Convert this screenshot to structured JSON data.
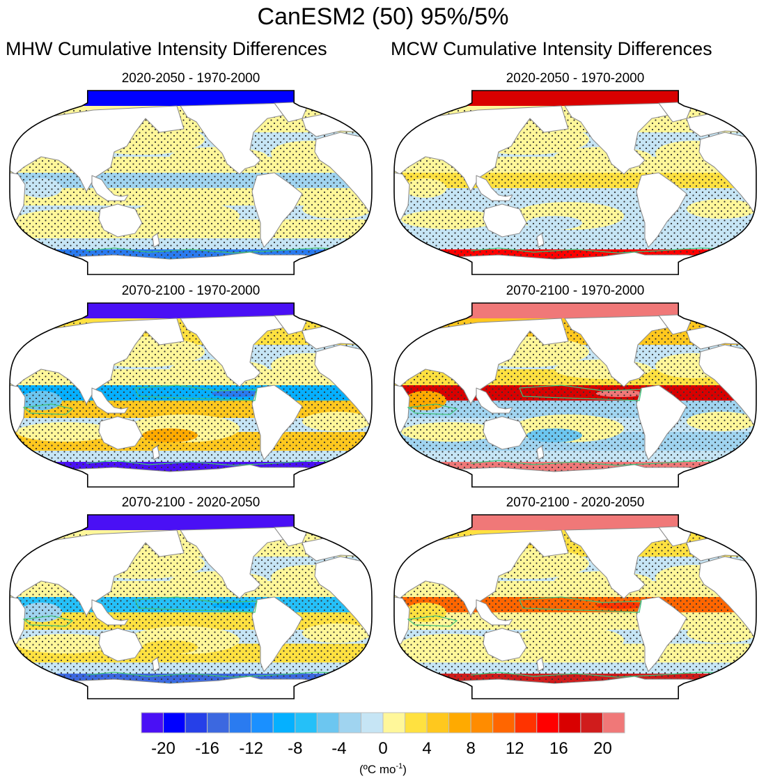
{
  "figure": {
    "title": "CanESM2 (50) 95%/5%",
    "columns": [
      {
        "title": "MHW Cumulative Intensity Differences"
      },
      {
        "title": "MCW Cumulative Intensity Differences"
      }
    ]
  },
  "chart_data": {
    "type": "heatmap",
    "title": "CanESM2 (50) 95%/5%",
    "projection": "Robinson (Pacific-centered)",
    "colorbar": {
      "label": "(ºC mo⁻¹)",
      "label_text": "(ºC mo",
      "label_sup": "-1",
      "label_close": ")",
      "tick_labels": [
        "-20",
        "-16",
        "-12",
        "-8",
        "-4",
        "0",
        "4",
        "8",
        "12",
        "16",
        "20"
      ],
      "tick_values": [
        -20,
        -16,
        -12,
        -8,
        -4,
        0,
        4,
        8,
        12,
        16,
        20
      ],
      "levels": [
        -20,
        -18,
        -16,
        -14,
        -12,
        -10,
        -8,
        -6,
        -4,
        -2,
        0,
        2,
        4,
        6,
        8,
        10,
        12,
        14,
        16,
        18,
        20
      ],
      "colors": [
        "#4a10f5",
        "#0000ff",
        "#2640e8",
        "#3c68e0",
        "#2a7bf0",
        "#1a90ff",
        "#05b0ff",
        "#25c0f8",
        "#6cc6f0",
        "#a0d4f0",
        "#c6e5f5",
        "#fff79a",
        "#ffe140",
        "#ffc81e",
        "#ffaa00",
        "#ff8c00",
        "#ff6600",
        "#ff3300",
        "#ff0000",
        "#d90000",
        "#d01c1c",
        "#f07878"
      ]
    },
    "stippling": "significant at 95%/5% level",
    "contour_color": "#3ec47a",
    "panels": [
      {
        "column": "MHW",
        "title": "2020-2050 - 1970-2000",
        "regions": {
          "arctic": -20,
          "north_pacific": 1,
          "equatorial_pacific": -3,
          "south_pacific": 1,
          "indian_ocean": -2,
          "north_atlantic": 1,
          "southern_ocean": -14,
          "antarctic_coast": -12
        }
      },
      {
        "column": "MCW",
        "title": "2020-2050 - 1970-2000",
        "regions": {
          "arctic": 16,
          "north_pacific": 1,
          "equatorial_pacific": 2,
          "south_pacific": -1,
          "indian_ocean": 1,
          "north_atlantic": 1,
          "southern_ocean": 14,
          "antarctic_coast": 16
        }
      },
      {
        "column": "MHW",
        "title": "2070-2100 - 1970-2000",
        "regions": {
          "arctic": -22,
          "north_pacific": 2,
          "equatorial_pacific": -10,
          "south_pacific": 4,
          "indian_ocean": -5,
          "north_atlantic": 2,
          "southern_ocean": -22,
          "antarctic_coast": -22
        }
      },
      {
        "column": "MCW",
        "title": "2070-2100 - 1970-2000",
        "regions": {
          "arctic": 22,
          "north_pacific": 4,
          "equatorial_pacific": 16,
          "south_pacific": -3,
          "indian_ocean": 6,
          "north_atlantic": 2,
          "southern_ocean": 22,
          "antarctic_coast": 22
        }
      },
      {
        "column": "MHW",
        "title": "2070-2100 - 2020-2050",
        "regions": {
          "arctic": -22,
          "north_pacific": 1,
          "equatorial_pacific": -7,
          "south_pacific": 2,
          "indian_ocean": -3,
          "north_atlantic": 1,
          "southern_ocean": -16,
          "antarctic_coast": -14
        }
      },
      {
        "column": "MCW",
        "title": "2070-2100 - 2020-2050",
        "regions": {
          "arctic": 22,
          "north_pacific": 3,
          "equatorial_pacific": 10,
          "south_pacific": 1,
          "indian_ocean": 3,
          "north_atlantic": 1,
          "southern_ocean": 18,
          "antarctic_coast": 16
        }
      }
    ]
  }
}
